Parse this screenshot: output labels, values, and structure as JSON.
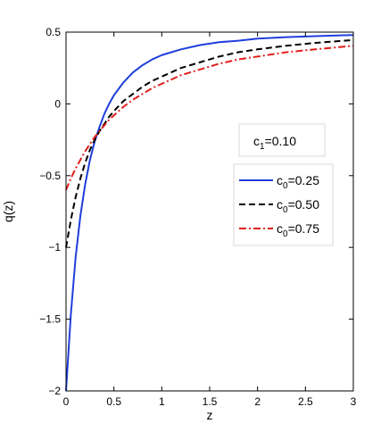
{
  "chart_data": {
    "type": "line",
    "title": "",
    "xlabel": "z",
    "ylabel": "q(z)",
    "xlim": [
      0,
      3
    ],
    "ylim": [
      -2,
      0.5
    ],
    "xticks": [
      0,
      0.5,
      1,
      1.5,
      2,
      2.5,
      3
    ],
    "xtick_labels": [
      "0",
      "0.5",
      "1",
      "1.5",
      "2",
      "2.5",
      "3"
    ],
    "yticks": [
      -2,
      -1.5,
      -1,
      -0.5,
      0,
      0.5
    ],
    "ytick_labels": [
      "−2",
      "−1.5",
      "−1",
      "−0.5",
      "0",
      "0.5"
    ],
    "grid": false,
    "legend_position": "right",
    "annotation": {
      "text": "c",
      "sub": "1",
      "suffix": "=0.10"
    },
    "series": [
      {
        "name": "c0=0.25",
        "label_main": "c",
        "label_sub": "0",
        "label_suffix": "=0.25",
        "color": "#1f3fdb",
        "dash": "solid",
        "x": [
          0,
          0.05,
          0.1,
          0.15,
          0.2,
          0.25,
          0.3,
          0.35,
          0.4,
          0.45,
          0.5,
          0.6,
          0.7,
          0.8,
          0.9,
          1.0,
          1.2,
          1.4,
          1.6,
          1.8,
          2.0,
          2.3,
          2.6,
          3.0
        ],
        "y": [
          -2.0,
          -1.47,
          -1.07,
          -0.78,
          -0.56,
          -0.39,
          -0.26,
          -0.16,
          -0.07,
          0.0,
          0.06,
          0.15,
          0.22,
          0.27,
          0.31,
          0.34,
          0.38,
          0.41,
          0.43,
          0.44,
          0.455,
          0.465,
          0.472,
          0.48
        ]
      },
      {
        "name": "c0=0.50",
        "label_main": "c",
        "label_sub": "0",
        "label_suffix": "=0.50",
        "color": "#000000",
        "dash": "dashed",
        "x": [
          0,
          0.05,
          0.1,
          0.15,
          0.2,
          0.25,
          0.3,
          0.35,
          0.4,
          0.45,
          0.5,
          0.6,
          0.7,
          0.8,
          0.9,
          1.0,
          1.2,
          1.4,
          1.6,
          1.8,
          2.0,
          2.3,
          2.6,
          3.0
        ],
        "y": [
          -1.0,
          -0.81,
          -0.65,
          -0.52,
          -0.41,
          -0.32,
          -0.25,
          -0.19,
          -0.14,
          -0.09,
          -0.05,
          0.02,
          0.07,
          0.12,
          0.16,
          0.19,
          0.25,
          0.29,
          0.33,
          0.36,
          0.38,
          0.405,
          0.425,
          0.445
        ]
      },
      {
        "name": "c0=0.75",
        "label_main": "c",
        "label_sub": "0",
        "label_suffix": "=0.75",
        "color": "#e0201b",
        "dash": "dashdot",
        "x": [
          0,
          0.05,
          0.1,
          0.15,
          0.2,
          0.25,
          0.3,
          0.35,
          0.4,
          0.45,
          0.5,
          0.6,
          0.7,
          0.8,
          0.9,
          1.0,
          1.2,
          1.4,
          1.6,
          1.8,
          2.0,
          2.3,
          2.6,
          3.0
        ],
        "y": [
          -0.6,
          -0.52,
          -0.45,
          -0.39,
          -0.33,
          -0.28,
          -0.23,
          -0.19,
          -0.15,
          -0.11,
          -0.08,
          -0.02,
          0.03,
          0.07,
          0.11,
          0.14,
          0.2,
          0.24,
          0.28,
          0.31,
          0.33,
          0.36,
          0.38,
          0.405
        ]
      }
    ]
  }
}
